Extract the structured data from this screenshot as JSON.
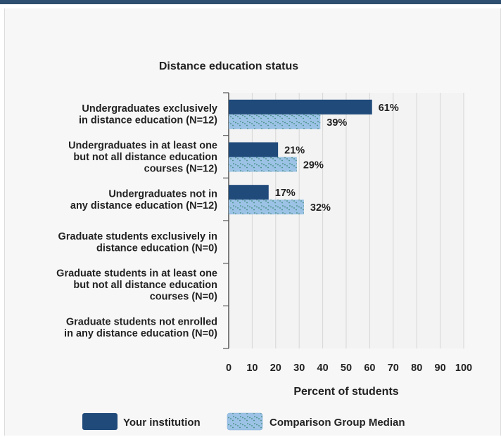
{
  "chart_data": {
    "type": "bar",
    "orientation": "horizontal",
    "title": "Distance education status",
    "xlabel": "Percent of students",
    "xlim": [
      0,
      100
    ],
    "xticks": [
      "0",
      "10",
      "20",
      "30",
      "40",
      "50",
      "60",
      "70",
      "80",
      "90",
      "100"
    ],
    "categories": [
      [
        "Undergraduates exclusively",
        "in distance education (N=12)"
      ],
      [
        "Undergraduates in at least one",
        "but not all distance education",
        "courses (N=12)"
      ],
      [
        "Undergraduates not in",
        "any distance education (N=12)"
      ],
      [
        "Graduate students exclusively in",
        "distance education (N=0)"
      ],
      [
        "Graduate students in at least one",
        "but not all distance education",
        "courses (N=0)"
      ],
      [
        "Graduate students not enrolled",
        "in any distance education (N=0)"
      ]
    ],
    "series": [
      {
        "name": "Your institution",
        "color": "#1f4a7a",
        "pattern": "solid",
        "values": [
          61,
          21,
          17,
          null,
          null,
          null
        ],
        "labels": [
          "61%",
          "21%",
          "17%",
          "",
          "",
          ""
        ]
      },
      {
        "name": "Comparison Group Median",
        "color": "#9cc3e6",
        "pattern": "hatched",
        "values": [
          39,
          29,
          32,
          null,
          null,
          null
        ],
        "labels": [
          "39%",
          "29%",
          "32%",
          "",
          "",
          ""
        ]
      }
    ],
    "grid": true,
    "legend_position": "bottom"
  }
}
